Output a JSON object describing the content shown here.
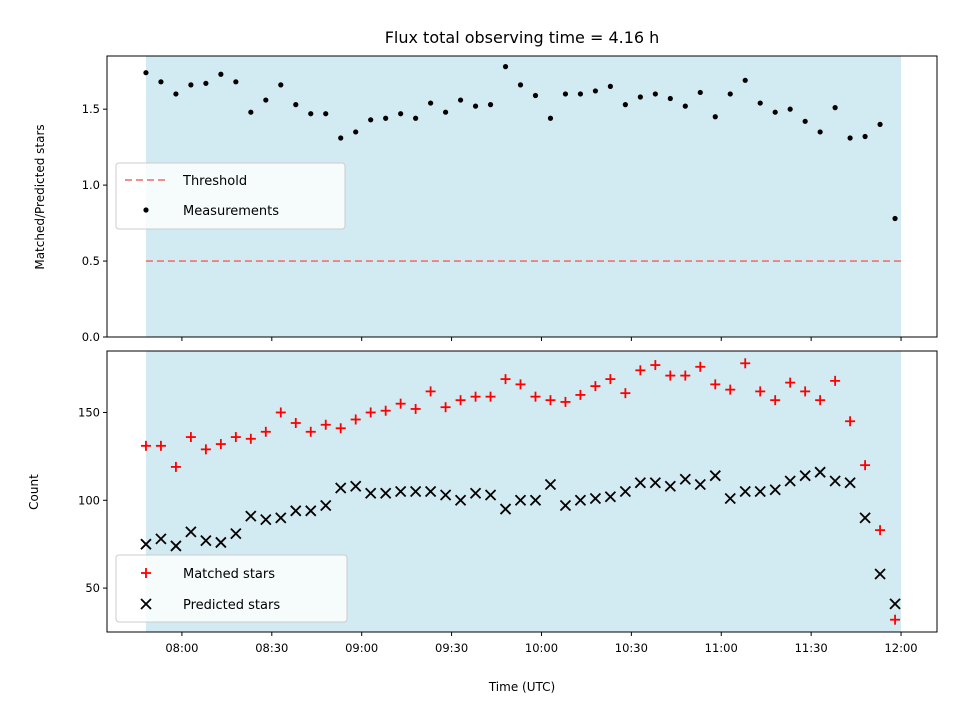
{
  "chart_data": [
    {
      "type": "scatter",
      "title": "Flux total observing time = 4.16 h",
      "xlabel": "",
      "ylabel": "Matched/Predicted stars",
      "ylim": [
        0,
        1.85
      ],
      "yticks": [
        0.0,
        0.5,
        1.0,
        1.5
      ],
      "ytick_labels": [
        "0.0",
        "0.5",
        "1.0",
        "1.5"
      ],
      "shaded_span": [
        "07:48",
        "12:00"
      ],
      "shade_color": "#add8e6",
      "threshold": {
        "name": "Threshold",
        "value": 0.5,
        "color": "#f08080",
        "style": "dashed"
      },
      "legend": {
        "placement": "center-left",
        "entries": [
          "Threshold",
          "Measurements"
        ]
      },
      "series": [
        {
          "name": "Measurements",
          "marker": "dot",
          "color": "#000000",
          "x": [
            "07:48",
            "07:53",
            "07:58",
            "08:03",
            "08:08",
            "08:13",
            "08:18",
            "08:23",
            "08:28",
            "08:33",
            "08:38",
            "08:43",
            "08:48",
            "08:53",
            "08:58",
            "09:03",
            "09:08",
            "09:13",
            "09:18",
            "09:23",
            "09:28",
            "09:33",
            "09:38",
            "09:43",
            "09:48",
            "09:53",
            "09:58",
            "10:03",
            "10:08",
            "10:13",
            "10:18",
            "10:23",
            "10:28",
            "10:33",
            "10:38",
            "10:43",
            "10:48",
            "10:53",
            "10:58",
            "11:03",
            "11:08",
            "11:13",
            "11:18",
            "11:23",
            "11:28",
            "11:33",
            "11:38",
            "11:43",
            "11:48",
            "11:53",
            "11:58"
          ],
          "y": [
            1.74,
            1.68,
            1.6,
            1.66,
            1.67,
            1.73,
            1.68,
            1.48,
            1.56,
            1.66,
            1.53,
            1.47,
            1.47,
            1.31,
            1.35,
            1.43,
            1.44,
            1.47,
            1.44,
            1.54,
            1.48,
            1.56,
            1.52,
            1.53,
            1.78,
            1.66,
            1.59,
            1.44,
            1.6,
            1.6,
            1.62,
            1.65,
            1.53,
            1.58,
            1.6,
            1.57,
            1.52,
            1.61,
            1.45,
            1.6,
            1.69,
            1.54,
            1.48,
            1.5,
            1.42,
            1.35,
            1.51,
            1.31,
            1.32,
            1.4,
            0.78
          ]
        }
      ]
    },
    {
      "type": "scatter",
      "title": "",
      "xlabel": "Time (UTC)",
      "ylabel": "Count",
      "xlim": [
        "07:35",
        "12:12"
      ],
      "xticks": [
        "08:00",
        "08:30",
        "09:00",
        "09:30",
        "10:00",
        "10:30",
        "11:00",
        "11:30",
        "12:00"
      ],
      "ylim": [
        25,
        185
      ],
      "yticks": [
        50,
        100,
        150
      ],
      "shaded_span": [
        "07:48",
        "12:00"
      ],
      "shade_color": "#add8e6",
      "legend": {
        "placement": "bottom-left",
        "entries": [
          "Matched stars",
          "Predicted stars"
        ]
      },
      "series": [
        {
          "name": "Matched stars",
          "marker": "plus",
          "color": "#ff0000",
          "x": [
            "07:48",
            "07:53",
            "07:58",
            "08:03",
            "08:08",
            "08:13",
            "08:18",
            "08:23",
            "08:28",
            "08:33",
            "08:38",
            "08:43",
            "08:48",
            "08:53",
            "08:58",
            "09:03",
            "09:08",
            "09:13",
            "09:18",
            "09:23",
            "09:28",
            "09:33",
            "09:38",
            "09:43",
            "09:48",
            "09:53",
            "09:58",
            "10:03",
            "10:08",
            "10:13",
            "10:18",
            "10:23",
            "10:28",
            "10:33",
            "10:38",
            "10:43",
            "10:48",
            "10:53",
            "10:58",
            "11:03",
            "11:08",
            "11:13",
            "11:18",
            "11:23",
            "11:28",
            "11:33",
            "11:38",
            "11:43",
            "11:48",
            "11:53",
            "11:58"
          ],
          "y": [
            131,
            131,
            119,
            136,
            129,
            132,
            136,
            135,
            139,
            150,
            144,
            139,
            143,
            141,
            146,
            150,
            151,
            155,
            152,
            162,
            153,
            157,
            159,
            159,
            169,
            166,
            159,
            157,
            156,
            160,
            165,
            169,
            161,
            174,
            177,
            171,
            171,
            176,
            166,
            163,
            178,
            162,
            157,
            167,
            162,
            157,
            168,
            145,
            120,
            83,
            32
          ]
        },
        {
          "name": "Predicted stars",
          "marker": "x",
          "color": "#000000",
          "x": [
            "07:48",
            "07:53",
            "07:58",
            "08:03",
            "08:08",
            "08:13",
            "08:18",
            "08:23",
            "08:28",
            "08:33",
            "08:38",
            "08:43",
            "08:48",
            "08:53",
            "08:58",
            "09:03",
            "09:08",
            "09:13",
            "09:18",
            "09:23",
            "09:28",
            "09:33",
            "09:38",
            "09:43",
            "09:48",
            "09:53",
            "09:58",
            "10:03",
            "10:08",
            "10:13",
            "10:18",
            "10:23",
            "10:28",
            "10:33",
            "10:38",
            "10:43",
            "10:48",
            "10:53",
            "10:58",
            "11:03",
            "11:08",
            "11:13",
            "11:18",
            "11:23",
            "11:28",
            "11:33",
            "11:38",
            "11:43",
            "11:48",
            "11:53",
            "11:58"
          ],
          "y": [
            75,
            78,
            74,
            82,
            77,
            76,
            81,
            91,
            89,
            90,
            94,
            94,
            97,
            107,
            108,
            104,
            104,
            105,
            105,
            105,
            103,
            100,
            104,
            103,
            95,
            100,
            100,
            109,
            97,
            100,
            101,
            102,
            105,
            110,
            110,
            108,
            112,
            109,
            114,
            101,
            105,
            105,
            106,
            111,
            114,
            116,
            111,
            110,
            90,
            58,
            41
          ]
        }
      ]
    }
  ]
}
